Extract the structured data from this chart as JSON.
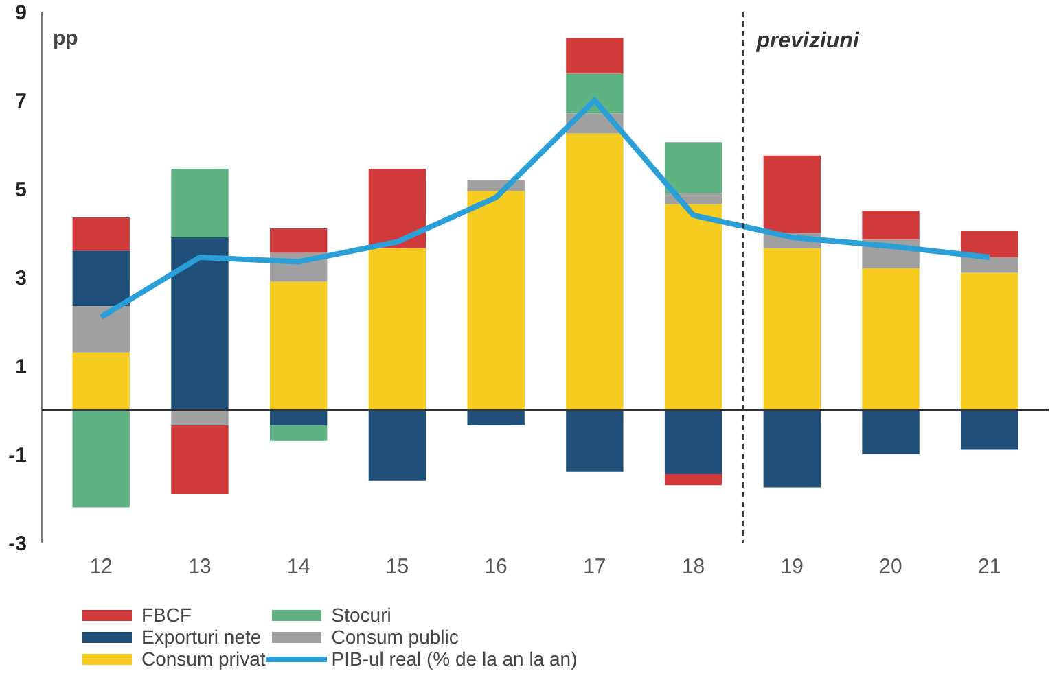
{
  "chart_data": {
    "type": "bar",
    "stacked": true,
    "ylabel": "pp",
    "x": [
      12,
      13,
      14,
      15,
      16,
      17,
      18,
      19,
      20,
      21
    ],
    "xlim": [
      11.4,
      21.6
    ],
    "xticks": [
      12,
      13,
      14,
      15,
      16,
      17,
      18,
      19,
      20,
      21
    ],
    "ylim": [
      -3,
      9
    ],
    "yticks": [
      -3,
      -1,
      1,
      3,
      5,
      7,
      9
    ],
    "series": [
      {
        "name": "Consum privat",
        "color": "#f5cc1f",
        "values": [
          1.3,
          0,
          2.9,
          3.65,
          4.95,
          6.25,
          4.65,
          3.65,
          3.2,
          3.1
        ]
      },
      {
        "name": "Consum public",
        "color": "#a0a0a0",
        "values": [
          1.05,
          -0.35,
          0.65,
          0,
          0.25,
          0.45,
          0.25,
          0.35,
          0.65,
          0.35
        ]
      },
      {
        "name": "Exporturi nete",
        "color": "#1f4e79",
        "values": [
          1.25,
          3.9,
          -0.35,
          -1.6,
          -0.35,
          -1.4,
          -1.45,
          -1.75,
          -1.0,
          -0.9
        ]
      },
      {
        "name": "Stocuri",
        "color": "#5fb383",
        "values": [
          -2.2,
          1.55,
          -0.35,
          0,
          0,
          0.9,
          1.15,
          0,
          0,
          0
        ]
      },
      {
        "name": "FBCF",
        "color": "#d03a3a",
        "values": [
          0.75,
          -1.55,
          0.55,
          1.8,
          0,
          0.8,
          -0.25,
          1.75,
          0.65,
          0.6
        ]
      },
      {
        "name": "PIB-ul real (% de la an la an)",
        "color": "#2a9fd8",
        "type": "line",
        "values": [
          2.1,
          3.45,
          3.35,
          3.8,
          4.8,
          7.0,
          4.4,
          3.9,
          3.7,
          3.45
        ]
      }
    ],
    "ref_lines": [
      {
        "axis": "y",
        "value": 0,
        "color": "#333333",
        "line_style": "solid"
      },
      {
        "axis": "x",
        "value": 18.5,
        "label": "previziuni",
        "color": "#333333",
        "line_style": "dashed"
      }
    ],
    "grid": false,
    "legend": "bottom",
    "marker": "none",
    "line_style": "solid"
  }
}
